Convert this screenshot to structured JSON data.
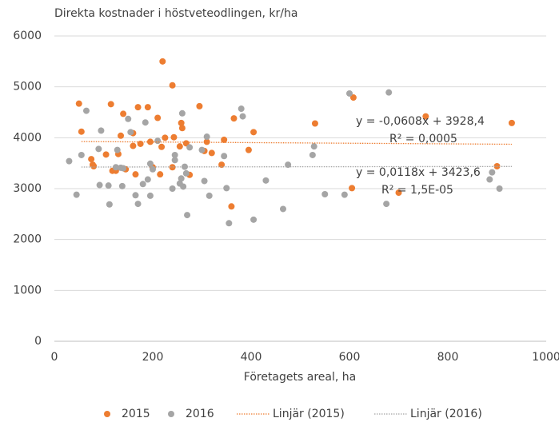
{
  "chart_data": {
    "type": "scatter",
    "title": "Direkta kostnader i höstveteodlingen, kr/ha",
    "x_label": "Företagets areal, ha",
    "xlim": [
      0,
      1000
    ],
    "xticks": [
      0,
      200,
      400,
      600,
      800,
      1000
    ],
    "ylim": [
      0,
      6000
    ],
    "yticks": [
      0,
      1000,
      2000,
      3000,
      4000,
      5000,
      6000
    ],
    "grid": true,
    "legend": "bottom",
    "series": [
      {
        "name": "2015",
        "color": "#ed7d31",
        "style": "marker",
        "x": [
          50,
          55,
          75,
          78,
          80,
          105,
          115,
          118,
          125,
          130,
          135,
          140,
          145,
          160,
          160,
          165,
          170,
          175,
          190,
          195,
          200,
          210,
          215,
          218,
          220,
          225,
          240,
          240,
          243,
          255,
          258,
          260,
          268,
          275,
          295,
          305,
          310,
          320,
          340,
          345,
          360,
          365,
          395,
          405,
          530,
          605,
          608,
          700,
          755,
          900,
          930
        ],
        "values": [
          4670,
          4120,
          3580,
          3470,
          3440,
          3670,
          4660,
          3350,
          3350,
          3680,
          4040,
          4470,
          3380,
          3840,
          4090,
          3280,
          4600,
          3880,
          4600,
          3920,
          3420,
          4390,
          3280,
          3820,
          5500,
          4000,
          5030,
          3420,
          4010,
          3830,
          4290,
          4190,
          3890,
          3270,
          4620,
          3740,
          3920,
          3700,
          3470,
          3960,
          2650,
          4380,
          3760,
          4110,
          4280,
          3010,
          4790,
          2920,
          4420,
          3440,
          4290
        ]
      },
      {
        "name": "2016",
        "color": "#a5a5a5",
        "style": "marker",
        "x": [
          30,
          45,
          55,
          65,
          90,
          92,
          95,
          110,
          112,
          125,
          128,
          135,
          138,
          140,
          150,
          155,
          165,
          170,
          180,
          185,
          190,
          195,
          195,
          200,
          210,
          240,
          245,
          245,
          255,
          258,
          260,
          262,
          265,
          268,
          270,
          275,
          300,
          305,
          310,
          315,
          345,
          350,
          355,
          380,
          383,
          405,
          430,
          465,
          475,
          525,
          528,
          550,
          590,
          600,
          675,
          680,
          885,
          890,
          905
        ],
        "values": [
          3540,
          2880,
          3660,
          4530,
          3780,
          3070,
          4140,
          3060,
          2690,
          3420,
          3760,
          3410,
          3050,
          3400,
          4370,
          4110,
          2870,
          2700,
          3090,
          4300,
          3180,
          3490,
          2860,
          3380,
          3940,
          3000,
          3560,
          3660,
          3100,
          3200,
          4480,
          3040,
          3430,
          3300,
          2480,
          3810,
          3760,
          3150,
          4020,
          2860,
          3640,
          3010,
          2320,
          4570,
          4420,
          2390,
          3160,
          2600,
          3470,
          3660,
          3830,
          2890,
          2880,
          4870,
          2700,
          4890,
          3180,
          3320,
          3000
        ]
      },
      {
        "name": "Linjär  (2015)",
        "color": "#ed7d31",
        "style": "dotted",
        "x": [
          55,
          930
        ],
        "values": [
          3925,
          3872
        ]
      },
      {
        "name": "Linjär  (2016)",
        "color": "#a5a5a5",
        "style": "dotted",
        "x": [
          55,
          930
        ],
        "values": [
          3424,
          3435
        ]
      }
    ],
    "annotations": [
      "y = -0,0608x + 3928,4",
      "R² = 0,0005",
      "y = 0,0118x + 3423,6",
      "R² = 1,5E-05"
    ]
  }
}
